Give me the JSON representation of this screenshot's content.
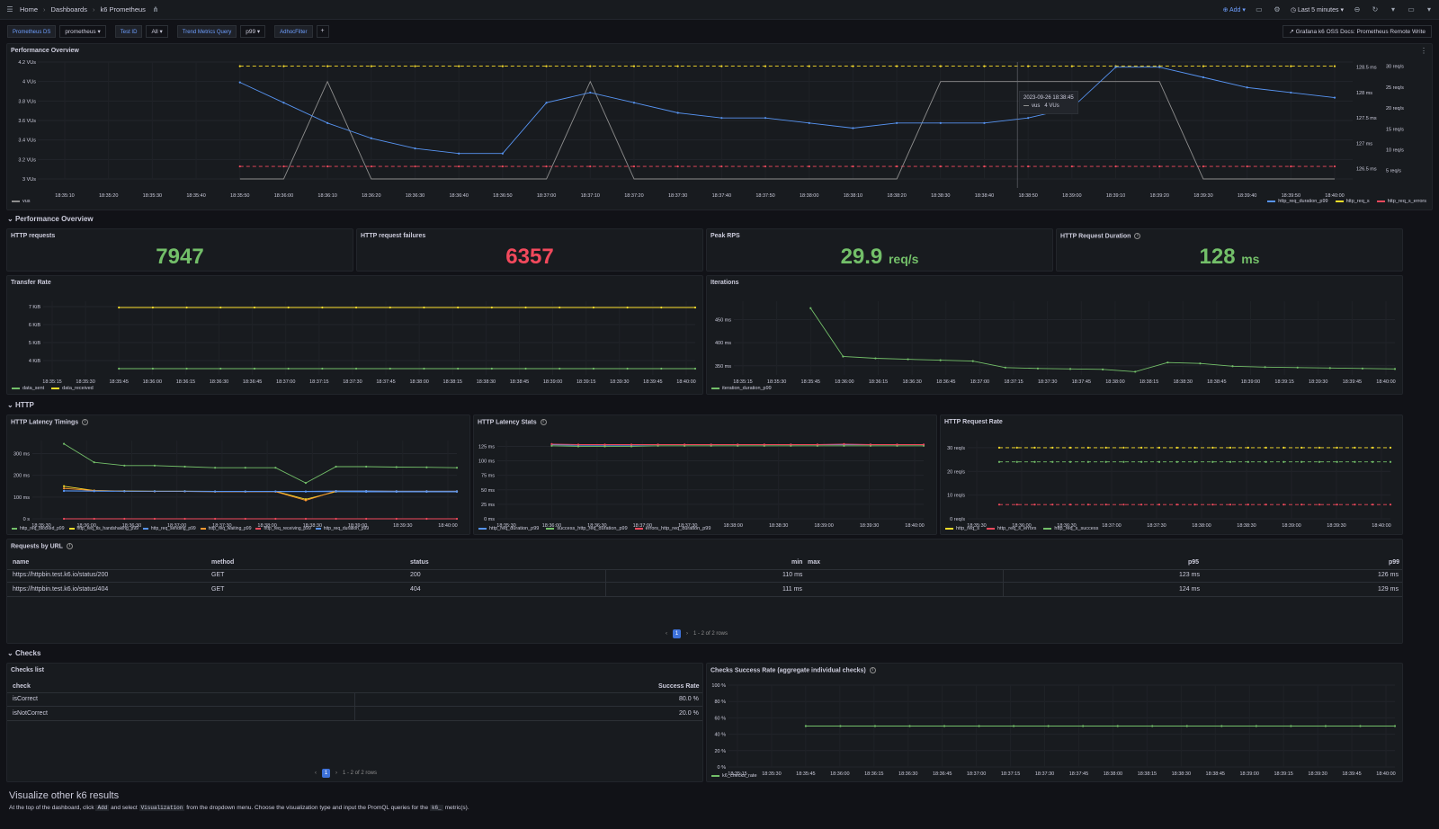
{
  "topbar": {
    "home": "Home",
    "dashboards": "Dashboards",
    "title": "k6 Prometheus",
    "add": "Add",
    "time_range": "Last 5 minutes"
  },
  "vars": {
    "ds_label": "Prometheus DS",
    "ds_value": "prometheus",
    "testid_label": "Test ID",
    "testid_value": "All",
    "trend_label": "Trend Metrics Query",
    "trend_value": "p99",
    "adhoc_label": "AdhocFilter",
    "doc_link": "Grafana k6 OSS Docs: Prometheus Remote Write"
  },
  "perf": {
    "title": "Performance Overview",
    "tooltip_time": "2023-09-26 18:38:45",
    "tooltip_series": "vus",
    "tooltip_value": "4 VUs",
    "legend_left": "vus",
    "legend_right": [
      "http_req_duration_p99",
      "http_req_s",
      "http_req_s_errors"
    ]
  },
  "row_perf": "Performance Overview",
  "stats": [
    {
      "title": "HTTP requests",
      "value": "7947",
      "unit": "",
      "color": "#73bf69"
    },
    {
      "title": "HTTP request failures",
      "value": "6357",
      "unit": "",
      "color": "#f2495c"
    },
    {
      "title": "Peak RPS",
      "value": "29.9",
      "unit": "req/s",
      "color": "#73bf69"
    },
    {
      "title": "HTTP Request Duration",
      "value": "128",
      "unit": "ms",
      "color": "#73bf69"
    }
  ],
  "transfer": {
    "title": "Transfer Rate",
    "legend": [
      "data_sent",
      "data_received"
    ]
  },
  "iterations": {
    "title": "Iterations",
    "legend": [
      "iteration_duration_p99"
    ]
  },
  "row_http": "HTTP",
  "latency_timings": {
    "title": "HTTP Latency Timings",
    "legend": [
      "http_req_blocked_p99",
      "http_req_tls_handshaking_p99",
      "http_req_sending_p99",
      "http_req_waiting_p99",
      "http_req_receiving_p99",
      "http_req_duration_p99"
    ]
  },
  "latency_stats": {
    "title": "HTTP Latency Stats",
    "legend": [
      "http_req_duration_p99",
      "success_http_req_duration_p99",
      "errors_http_req_duration_p99"
    ]
  },
  "req_rate": {
    "title": "HTTP Request Rate",
    "legend": [
      "http_req_s",
      "http_req_s_errors",
      "http_req_s_success"
    ]
  },
  "requests_by_url": {
    "title": "Requests by URL",
    "headers": [
      "name",
      "method",
      "status",
      "min",
      "max",
      "p95",
      "p99"
    ],
    "rows": [
      [
        "https://httpbin.test.k6.io/status/200",
        "GET",
        "200",
        "110 ms",
        "",
        "123 ms",
        "126 ms"
      ],
      [
        "https://httpbin.test.k6.io/status/404",
        "GET",
        "404",
        "111 ms",
        "",
        "124 ms",
        "129 ms"
      ]
    ],
    "page": "1",
    "rows_info": "1 - 2 of 2 rows"
  },
  "row_checks": "Checks",
  "checks_list": {
    "title": "Checks list",
    "headers": [
      "check",
      "Success Rate"
    ],
    "rows": [
      [
        "isCorrect",
        "80.0 %"
      ],
      [
        "isNotCorrect",
        "20.0 %"
      ]
    ],
    "page": "1",
    "rows_info": "1 - 2 of 2 rows"
  },
  "checks_rate": {
    "title": "Checks Success Rate (aggregate individual checks)",
    "legend": [
      "k6_checks_rate"
    ]
  },
  "viz": {
    "title": "Visualize other k6 results",
    "t1": "At the top of the dashboard, click",
    "c1": "Add",
    "t2": "and select",
    "c2": "Visualization",
    "t3": "from the dropdown menu. Choose the visualization type and input the PromQL queries for the",
    "c3": "k6_",
    "t4": "metric(s)."
  },
  "colors": {
    "green": "#73bf69",
    "yellow": "#fade2a",
    "red": "#f2495c",
    "blue": "#5794f2",
    "orange": "#ff9830",
    "grey": "#8e8e8e"
  },
  "chart_data": [
    {
      "id": "perf",
      "type": "line",
      "x": [
        "18:35:50",
        "18:36:00",
        "18:36:10",
        "18:36:20",
        "18:36:30",
        "18:36:40",
        "18:36:50",
        "18:37:00",
        "18:37:10",
        "18:37:20",
        "18:37:30",
        "18:37:40",
        "18:37:50",
        "18:38:00",
        "18:38:10",
        "18:38:20",
        "18:38:30",
        "18:38:40",
        "18:38:50",
        "18:39:00",
        "18:39:10",
        "18:39:20",
        "18:39:30",
        "18:39:40",
        "18:39:50",
        "18:40:00"
      ],
      "xticks": [
        "18:35:10",
        "18:35:20",
        "18:35:30",
        "18:35:40",
        "18:35:50",
        "18:36:00",
        "18:36:10",
        "18:36:20",
        "18:36:30",
        "18:36:40",
        "18:36:50",
        "18:37:00",
        "18:37:10",
        "18:37:20",
        "18:37:30",
        "18:37:40",
        "18:37:50",
        "18:38:00",
        "18:38:10",
        "18:38:20",
        "18:38:30",
        "18:38:40",
        "18:38:50",
        "18:39:00",
        "18:39:10",
        "18:39:20",
        "18:39:30",
        "18:39:40",
        "18:39:50",
        "18:40:00"
      ],
      "y_left_ticks": [
        "4.2 VUs",
        "4 VUs",
        "3.8 VUs",
        "3.6 VUs",
        "3.4 VUs",
        "3.2 VUs",
        "3 VUs"
      ],
      "y_right1_ticks": [
        "128.5 ms",
        "128 ms",
        "127.5 ms",
        "127 ms",
        "126.5 ms"
      ],
      "y_right2_ticks": [
        "30 req/s",
        "25 req/s",
        "20 req/s",
        "15 req/s",
        "10 req/s",
        "5 req/s"
      ],
      "series": [
        {
          "name": "vus",
          "axis": "left",
          "values": [
            3,
            3,
            4,
            3,
            3,
            3,
            3,
            3,
            4,
            3,
            3,
            3,
            3,
            3,
            3,
            3,
            4,
            4,
            4,
            4,
            4,
            4,
            3,
            3,
            3,
            3
          ]
        },
        {
          "name": "http_req_duration_p99",
          "axis": "ms",
          "values": [
            128.2,
            127.8,
            127.4,
            127.1,
            126.9,
            126.8,
            126.8,
            127.8,
            128.0,
            127.8,
            127.6,
            127.5,
            127.5,
            127.4,
            127.3,
            127.4,
            127.4,
            127.4,
            127.5,
            127.7,
            128.5,
            128.5,
            128.3,
            128.1,
            128.0,
            127.9
          ]
        },
        {
          "name": "http_req_s",
          "axis": "rps",
          "values": [
            30,
            30,
            30,
            30,
            30,
            30,
            30,
            30,
            30,
            30,
            30,
            30,
            30,
            30,
            30,
            30,
            30,
            30,
            30,
            30,
            30,
            30,
            30,
            30,
            30,
            30
          ]
        },
        {
          "name": "http_req_s_errors",
          "axis": "rps",
          "values": [
            6,
            6,
            6,
            6,
            6,
            6,
            6,
            6,
            6,
            6,
            6,
            6,
            6,
            6,
            6,
            6,
            6,
            6,
            6,
            6,
            6,
            6,
            6,
            6,
            6,
            6
          ]
        }
      ]
    },
    {
      "id": "transfer",
      "type": "line",
      "xticks": [
        "18:35:15",
        "18:35:30",
        "18:35:45",
        "18:36:00",
        "18:36:15",
        "18:36:30",
        "18:36:45",
        "18:37:00",
        "18:37:15",
        "18:37:30",
        "18:37:45",
        "18:38:00",
        "18:38:15",
        "18:38:30",
        "18:38:45",
        "18:39:00",
        "18:39:15",
        "18:39:30",
        "18:39:45",
        "18:40:00"
      ],
      "yticks": [
        "7 KiB",
        "6 KiB",
        "5 KiB",
        "4 KiB"
      ],
      "series": [
        {
          "name": "data_sent",
          "values": [
            3.55,
            3.55,
            3.55,
            3.55,
            3.55,
            3.55,
            3.55,
            3.55,
            3.55,
            3.55,
            3.55,
            3.55,
            3.55,
            3.55,
            3.55,
            3.55,
            3.55,
            3.55
          ]
        },
        {
          "name": "data_received",
          "values": [
            6.95,
            6.95,
            6.95,
            6.95,
            6.95,
            6.95,
            6.95,
            6.95,
            6.95,
            6.95,
            6.95,
            6.95,
            6.95,
            6.95,
            6.95,
            6.95,
            6.95,
            6.95
          ]
        }
      ]
    },
    {
      "id": "iterations",
      "type": "line",
      "xticks": [
        "18:35:15",
        "18:35:30",
        "18:35:45",
        "18:36:00",
        "18:36:15",
        "18:36:30",
        "18:36:45",
        "18:37:00",
        "18:37:15",
        "18:37:30",
        "18:37:45",
        "18:38:00",
        "18:38:15",
        "18:38:30",
        "18:38:45",
        "18:39:00",
        "18:39:15",
        "18:39:30",
        "18:39:45",
        "18:40:00"
      ],
      "yticks": [
        "450 ms",
        "400 ms",
        "350 ms"
      ],
      "series": [
        {
          "name": "iteration_duration_p99",
          "values": [
            475,
            370,
            366,
            364,
            362,
            360,
            346,
            344,
            343,
            342,
            337,
            357,
            355,
            349,
            347,
            346,
            345,
            344,
            343
          ]
        }
      ]
    },
    {
      "id": "latency_timings",
      "type": "line",
      "xticks": [
        "18:35:30",
        "18:36:00",
        "18:36:30",
        "18:37:00",
        "18:37:30",
        "18:38:00",
        "18:38:30",
        "18:39:00",
        "18:39:30",
        "18:40:00"
      ],
      "yticks": [
        "300 ms",
        "200 ms",
        "100 ms",
        "0 s"
      ],
      "series": [
        {
          "name": "http_req_blocked_p99",
          "values": [
            345,
            260,
            245,
            245,
            240,
            235,
            235,
            235,
            165,
            240,
            240,
            238,
            237,
            235
          ]
        },
        {
          "name": "http_req_tls_handshaking_p99",
          "values": [
            150,
            130,
            128,
            127,
            127,
            126,
            126,
            126,
            90,
            125,
            125,
            125,
            125,
            125
          ]
        },
        {
          "name": "http_req_sending_p99",
          "values": [
            128,
            127,
            127,
            126,
            126,
            125,
            125,
            125,
            125,
            125,
            124,
            124,
            124,
            124
          ]
        },
        {
          "name": "http_req_waiting_p99",
          "values": [
            140,
            130,
            127,
            126,
            126,
            125,
            125,
            125,
            85,
            128,
            128,
            127,
            127,
            127
          ]
        },
        {
          "name": "http_req_receiving_p99",
          "values": [
            0,
            0,
            0,
            0,
            0,
            0,
            0,
            0,
            0,
            0,
            0,
            0,
            0,
            0
          ]
        },
        {
          "name": "http_req_duration_p99",
          "values": [
            129,
            128,
            127,
            127,
            127,
            126,
            126,
            126,
            126,
            128,
            128,
            127,
            127,
            127
          ]
        }
      ]
    },
    {
      "id": "latency_stats",
      "type": "line",
      "xticks": [
        "18:35:30",
        "18:36:00",
        "18:36:30",
        "18:37:00",
        "18:37:30",
        "18:38:00",
        "18:38:30",
        "18:39:00",
        "18:39:30",
        "18:40:00"
      ],
      "yticks": [
        "125 ms",
        "100 ms",
        "75 ms",
        "50 ms",
        "25 ms",
        "0 ms"
      ],
      "series": [
        {
          "name": "http_req_duration_p99",
          "values": [
            128,
            127,
            127,
            127,
            128,
            128,
            128,
            128,
            128,
            128,
            128,
            128,
            128,
            128,
            128
          ]
        },
        {
          "name": "success_http_req_duration_p99",
          "values": [
            126,
            125,
            125,
            125,
            126,
            126,
            126,
            126,
            126,
            126,
            126,
            126,
            126,
            126,
            126
          ]
        },
        {
          "name": "errors_http_req_duration_p99",
          "values": [
            129,
            128,
            128,
            128,
            128,
            128,
            128,
            128,
            128,
            128,
            128,
            129,
            128,
            128,
            128
          ]
        }
      ]
    },
    {
      "id": "req_rate",
      "type": "line",
      "xticks": [
        "18:35:30",
        "18:36:00",
        "18:36:30",
        "18:37:00",
        "18:37:30",
        "18:38:00",
        "18:38:30",
        "18:39:00",
        "18:39:30",
        "18:40:00"
      ],
      "yticks": [
        "30 req/s",
        "20 req/s",
        "10 req/s",
        "0 req/s"
      ],
      "series": [
        {
          "name": "http_req_s",
          "values": [
            30,
            30,
            30,
            30,
            30,
            30,
            30,
            30,
            30,
            30,
            30,
            30,
            30,
            30,
            30,
            30,
            30,
            30,
            30,
            30,
            30,
            30,
            30
          ]
        },
        {
          "name": "http_req_s_errors",
          "values": [
            6,
            6,
            6,
            6,
            6,
            6,
            6,
            6,
            6,
            6,
            6,
            6,
            6,
            6,
            6,
            6,
            6,
            6,
            6,
            6,
            6,
            6,
            6
          ]
        },
        {
          "name": "http_req_s_success",
          "values": [
            24,
            24,
            24,
            24,
            24,
            24,
            24,
            24,
            24,
            24,
            24,
            24,
            24,
            24,
            24,
            24,
            24,
            24,
            24,
            24,
            24,
            24,
            24
          ]
        }
      ]
    },
    {
      "id": "checks_rate",
      "type": "line",
      "xticks": [
        "18:35:15",
        "18:35:30",
        "18:35:45",
        "18:36:00",
        "18:36:15",
        "18:36:30",
        "18:36:45",
        "18:37:00",
        "18:37:15",
        "18:37:30",
        "18:37:45",
        "18:38:00",
        "18:38:15",
        "18:38:30",
        "18:38:45",
        "18:39:00",
        "18:39:15",
        "18:39:30",
        "18:39:45",
        "18:40:00"
      ],
      "yticks": [
        "100 %",
        "80 %",
        "60 %",
        "40 %",
        "20 %",
        "0 %"
      ],
      "series": [
        {
          "name": "k6_checks_rate",
          "values": [
            50,
            50,
            50,
            50,
            50,
            50,
            50,
            50,
            50,
            50,
            50,
            50,
            50,
            50,
            50,
            50,
            50,
            50
          ]
        }
      ]
    }
  ]
}
